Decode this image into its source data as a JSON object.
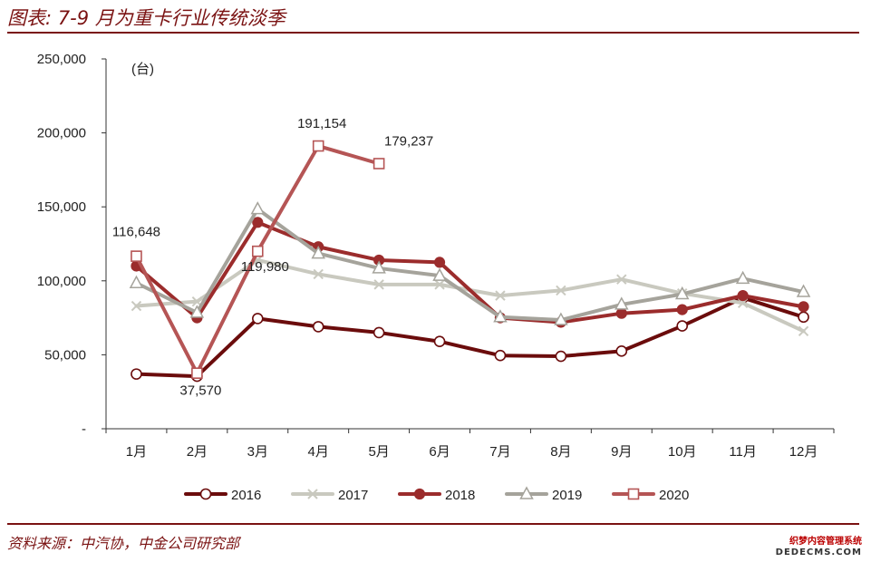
{
  "title": "图表: 7-9 月为重卡行业传统淡季",
  "source": "资料来源：中汽协，中金公司研究部",
  "watermark": {
    "line1": "织梦内容管理系统",
    "line2": "DEDECMS.COM"
  },
  "chart_data": {
    "type": "line",
    "unit_label": "(台)",
    "categories": [
      "1月",
      "2月",
      "3月",
      "4月",
      "5月",
      "6月",
      "7月",
      "8月",
      "9月",
      "10月",
      "11月",
      "12月"
    ],
    "y_ticks": [
      "-",
      "50,000",
      "100,000",
      "150,000",
      "200,000",
      "250,000"
    ],
    "ylim": [
      0,
      250000
    ],
    "legend_position": "bottom",
    "series": [
      {
        "name": "2016",
        "color": "#6b0c0c",
        "marker": "circle-open",
        "values": [
          37000,
          35500,
          74500,
          69000,
          65000,
          59000,
          49500,
          49000,
          52500,
          69500,
          88500,
          75500
        ]
      },
      {
        "name": "2017",
        "color": "#c9c9bf",
        "marker": "x",
        "values": [
          83000,
          86000,
          114000,
          104500,
          97500,
          97500,
          90000,
          93500,
          101000,
          91500,
          85000,
          66000
        ]
      },
      {
        "name": "2018",
        "color": "#9b2c2c",
        "marker": "circle-filled",
        "values": [
          110000,
          75000,
          139500,
          123000,
          114000,
          112500,
          75000,
          72000,
          78000,
          80500,
          90000,
          82500
        ]
      },
      {
        "name": "2019",
        "color": "#a5a39b",
        "marker": "triangle-open",
        "values": [
          98500,
          78500,
          148500,
          118500,
          108500,
          103500,
          75500,
          73500,
          84000,
          91000,
          101500,
          92500
        ]
      },
      {
        "name": "2020",
        "color": "#b55555",
        "marker": "square-open",
        "values": [
          116648,
          37570,
          119980,
          191154,
          179237,
          null,
          null,
          null,
          null,
          null,
          null,
          null
        ]
      }
    ],
    "annotations": [
      {
        "text": "116,648",
        "category": "1月",
        "value": 116648
      },
      {
        "text": "37,570",
        "category": "2月",
        "value": 37570
      },
      {
        "text": "119,980",
        "category": "3月",
        "value": 119980
      },
      {
        "text": "191,154",
        "category": "4月",
        "value": 191154
      },
      {
        "text": "179,237",
        "category": "5月",
        "value": 179237
      }
    ]
  }
}
